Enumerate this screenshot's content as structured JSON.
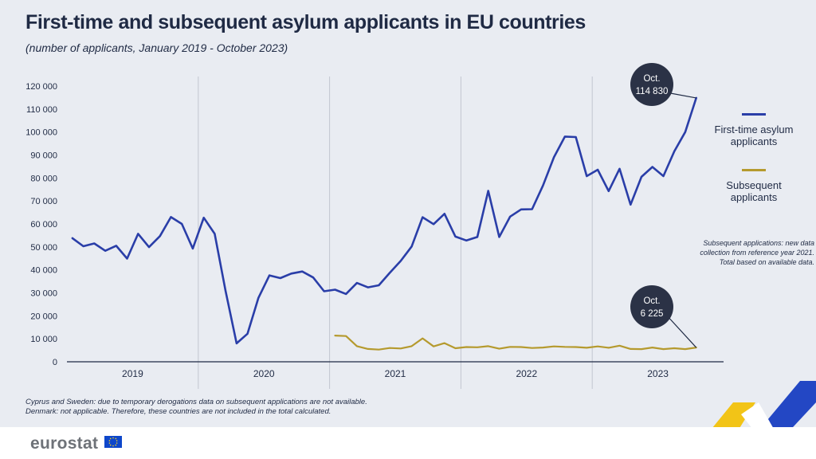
{
  "header": {
    "title": "First-time and subsequent asylum applicants in EU countries",
    "subtitle": "(number of applicants, January 2019 - October 2023)"
  },
  "legend": [
    {
      "label": "First-time asylum applicants",
      "color": "#2a3ea8"
    },
    {
      "label": "Subsequent applicants",
      "color": "#b59a2e"
    }
  ],
  "side_note": "Subsequent applications: new data collection from reference year 2021. Total based on available data.",
  "footnotes": [
    "Cyprus and Sweden: due to temporary derogations data on subsequent applications are not available.",
    "Denmark: not applicable. Therefore, these countries are not included in the total calculated."
  ],
  "brand": {
    "name": "eurostat"
  },
  "chart_data": {
    "type": "line",
    "title": "First-time and subsequent asylum applicants in EU countries",
    "subtitle": "(number of applicants, January 2019 - October 2023)",
    "ylim": [
      0,
      120000
    ],
    "yticks": [
      0,
      10000,
      20000,
      30000,
      40000,
      50000,
      60000,
      70000,
      80000,
      90000,
      100000,
      110000,
      120000
    ],
    "ytick_labels": [
      "0",
      "10 000",
      "20 000",
      "30 000",
      "40 000",
      "50 000",
      "60 000",
      "70 000",
      "80 000",
      "90 000",
      "100 000",
      "110 000",
      "120 000"
    ],
    "x_groups": [
      "2019",
      "2020",
      "2021",
      "2022",
      "2023"
    ],
    "x_start": "2019-01",
    "x_end": "2023-10",
    "grid": "vertical year separators",
    "legend_position": "right",
    "series": [
      {
        "name": "First-time asylum applicants",
        "color": "#2a3ea8",
        "start": "2019-01",
        "values": [
          53800,
          50300,
          51500,
          48300,
          50500,
          44900,
          55700,
          49900,
          54700,
          63000,
          60000,
          49300,
          62700,
          55700,
          30800,
          8000,
          12200,
          27800,
          37600,
          36400,
          38400,
          39300,
          36700,
          30700,
          31400,
          29500,
          34300,
          32400,
          33300,
          38700,
          43900,
          50200,
          62900,
          59900,
          64400,
          54500,
          52800,
          54300,
          74400,
          54300,
          63200,
          66300,
          66400,
          76700,
          89000,
          98000,
          97800,
          80800,
          83600,
          74300,
          84000,
          68400,
          80500,
          84800,
          80800,
          91600,
          100000,
          114830
        ]
      },
      {
        "name": "Subsequent applicants",
        "color": "#b59a2e",
        "start": "2021-01",
        "values": [
          11400,
          11200,
          6800,
          5600,
          5300,
          6000,
          5800,
          6800,
          10200,
          6700,
          8100,
          5900,
          6400,
          6300,
          6800,
          5700,
          6500,
          6400,
          6000,
          6200,
          6700,
          6500,
          6400,
          6100,
          6700,
          6100,
          7000,
          5600,
          5500,
          6200,
          5500,
          5900,
          5500,
          6225
        ]
      }
    ],
    "annotations": [
      {
        "series": "First-time asylum applicants",
        "x": "2023-10",
        "y": 114830,
        "month": "Oct.",
        "value": "114 830"
      },
      {
        "series": "Subsequent applicants",
        "x": "2023-10",
        "y": 6225,
        "month": "Oct.",
        "value": "6 225"
      }
    ]
  }
}
